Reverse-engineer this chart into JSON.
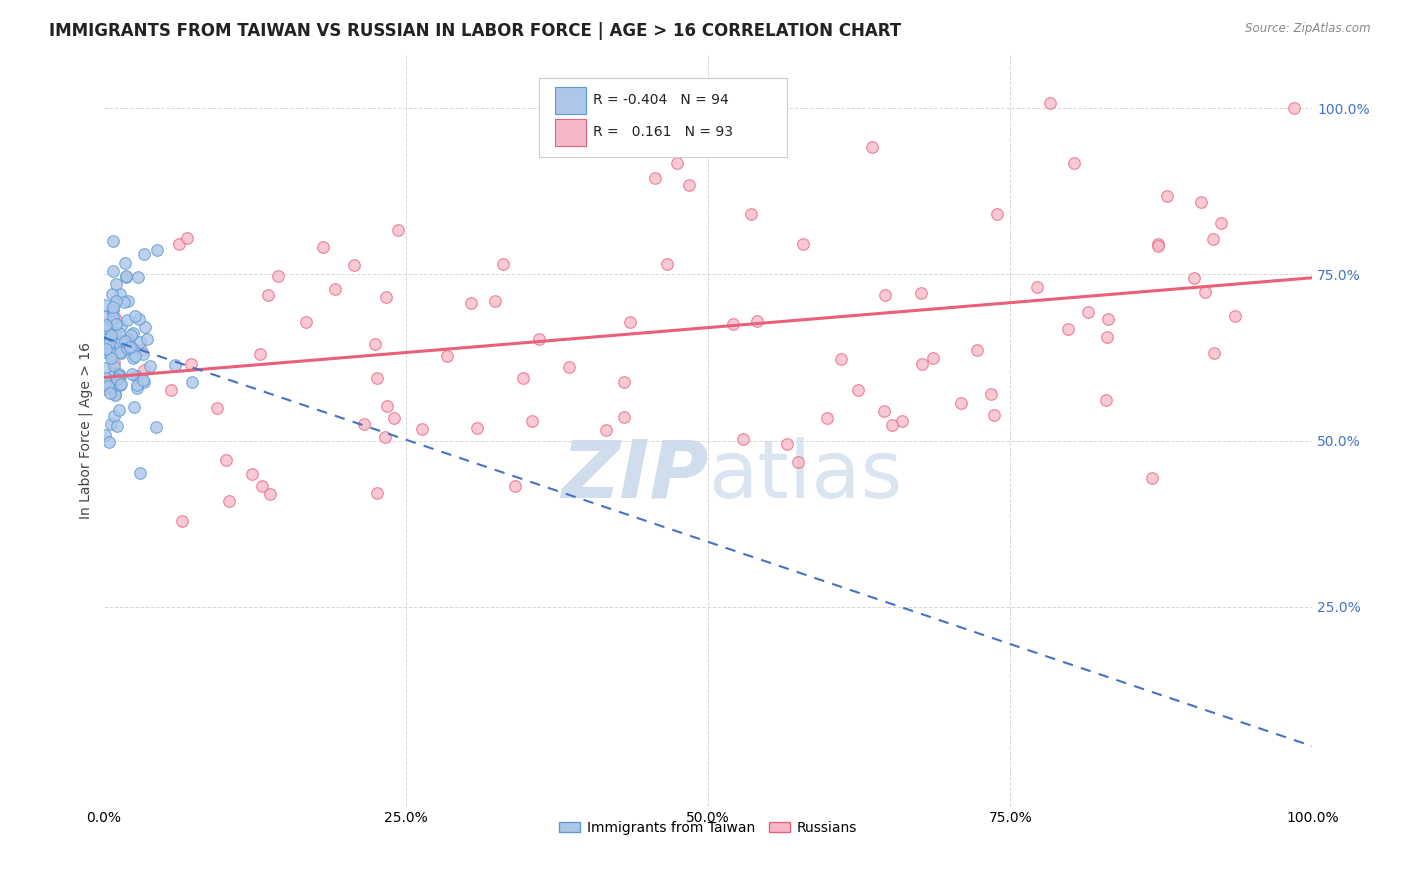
{
  "title": "IMMIGRANTS FROM TAIWAN VS RUSSIAN IN LABOR FORCE | AGE > 16 CORRELATION CHART",
  "source": "Source: ZipAtlas.com",
  "ylabel": "In Labor Force | Age > 16",
  "ytick_labels_right": [
    "25.0%",
    "50.0%",
    "75.0%",
    "100.0%"
  ],
  "ytick_positions": [
    0.25,
    0.5,
    0.75,
    1.0
  ],
  "xmin": 0.0,
  "xmax": 1.0,
  "ymin": -0.05,
  "ymax": 1.08,
  "taiwan_R": -0.404,
  "taiwan_N": 94,
  "russian_R": 0.161,
  "russian_N": 93,
  "taiwan_color": "#aec6e8",
  "russian_color": "#f5b8c8",
  "taiwan_edge_color": "#5b9bd5",
  "russian_edge_color": "#e8607a",
  "taiwan_line_color": "#4472c4",
  "russian_line_color": "#e8607a",
  "background_color": "#ffffff",
  "grid_color": "#d8d8d8",
  "title_fontsize": 12,
  "axis_label_fontsize": 10,
  "tick_fontsize": 10,
  "watermark_zip": "ZIP",
  "watermark_atlas": "atlas",
  "watermark_color": "#c8d8ea",
  "watermark_fontsize": 58,
  "legend_box_color": "#ffffff",
  "legend_border_color": "#cccccc",
  "right_tick_color": "#4472c4",
  "taiwan_trend_start_x": 0.0,
  "taiwan_trend_start_y": 0.655,
  "taiwan_trend_end_x": 1.0,
  "taiwan_trend_end_y": 0.04,
  "russian_trend_start_x": 0.0,
  "russian_trend_start_y": 0.595,
  "russian_trend_end_x": 1.0,
  "russian_trend_end_y": 0.745
}
